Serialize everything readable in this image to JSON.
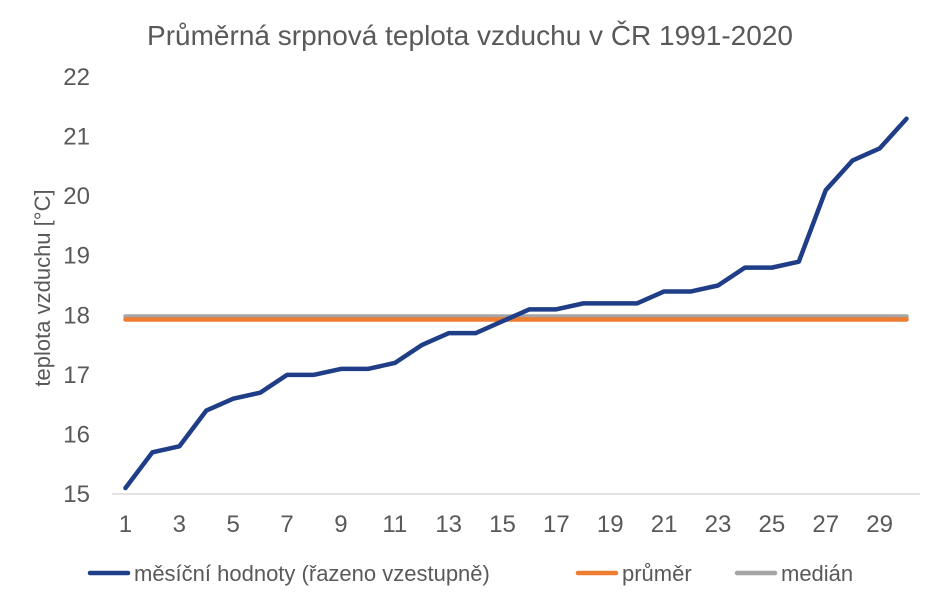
{
  "chart_data": {
    "type": "line",
    "title": "Průměrná srpnová teplota vzduchu v ČR 1991-2020",
    "ylabel": "teplota vzduchu [°C]",
    "xlabel": "",
    "ylim": [
      15,
      22
    ],
    "y_ticks": [
      "15",
      "16",
      "17",
      "18",
      "19",
      "20",
      "21",
      "22"
    ],
    "x": [
      1,
      2,
      3,
      4,
      5,
      6,
      7,
      8,
      9,
      10,
      11,
      12,
      13,
      14,
      15,
      16,
      17,
      18,
      19,
      20,
      21,
      22,
      23,
      24,
      25,
      26,
      27,
      28,
      29,
      30
    ],
    "x_ticks": [
      "1",
      "3",
      "5",
      "7",
      "9",
      "11",
      "13",
      "15",
      "17",
      "19",
      "21",
      "23",
      "25",
      "27",
      "29"
    ],
    "grid": false,
    "legend_position": "bottom",
    "series": [
      {
        "name": "měsíční hodnoty (řazeno vzestupně)",
        "color": "#1F3E87",
        "values": [
          15.1,
          15.7,
          15.8,
          16.4,
          16.6,
          16.7,
          17.0,
          17.0,
          17.1,
          17.1,
          17.2,
          17.5,
          17.7,
          17.7,
          17.9,
          18.1,
          18.1,
          18.2,
          18.2,
          18.2,
          18.4,
          18.4,
          18.5,
          18.8,
          18.8,
          18.9,
          20.1,
          20.6,
          20.8,
          21.3
        ]
      },
      {
        "name": "průměr",
        "color": "#ED7D31",
        "constant": 17.93
      },
      {
        "name": "medián",
        "color": "#A5A5A5",
        "constant": 17.98
      }
    ]
  }
}
